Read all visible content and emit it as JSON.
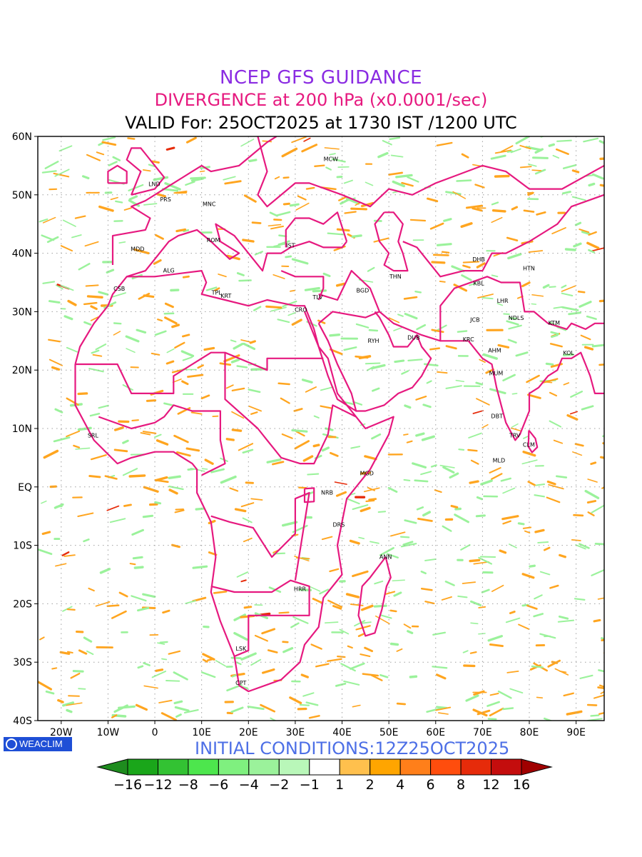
{
  "titles": {
    "line1": "NCEP GFS GUIDANCE",
    "line2": "DIVERGENCE at 200 hPa (x0.0001/sec)",
    "line3": "VALID For: 25OCT2025 at 1730 IST /1200 UTC"
  },
  "footer": {
    "logo_text": "WEACLIM",
    "initial_conditions": "INITIAL CONDITIONS:12Z25OCT2025"
  },
  "axes": {
    "lon_ticks": [
      {
        "lon": -20,
        "label": "20W"
      },
      {
        "lon": -10,
        "label": "10W"
      },
      {
        "lon": 0,
        "label": "0"
      },
      {
        "lon": 10,
        "label": "10E"
      },
      {
        "lon": 20,
        "label": "20E"
      },
      {
        "lon": 30,
        "label": "30E"
      },
      {
        "lon": 40,
        "label": "40E"
      },
      {
        "lon": 50,
        "label": "50E"
      },
      {
        "lon": 60,
        "label": "60E"
      },
      {
        "lon": 70,
        "label": "70E"
      },
      {
        "lon": 80,
        "label": "80E"
      },
      {
        "lon": 90,
        "label": "90E"
      }
    ],
    "lat_ticks": [
      {
        "lat": 60,
        "label": "60N"
      },
      {
        "lat": 50,
        "label": "50N"
      },
      {
        "lat": 40,
        "label": "40N"
      },
      {
        "lat": 30,
        "label": "30N"
      },
      {
        "lat": 20,
        "label": "20N"
      },
      {
        "lat": 10,
        "label": "10N"
      },
      {
        "lat": 0,
        "label": "EQ"
      },
      {
        "lat": -10,
        "label": "10S"
      },
      {
        "lat": -20,
        "label": "20S"
      },
      {
        "lat": -30,
        "label": "30S"
      },
      {
        "lat": -40,
        "label": "40S"
      }
    ],
    "lon_range": [
      -25,
      96
    ],
    "lat_range": [
      -40,
      60
    ]
  },
  "colorbar": {
    "labels": [
      "-16",
      "-12",
      "-8",
      "-6",
      "-4",
      "-2",
      "-1",
      "1",
      "2",
      "4",
      "6",
      "8",
      "12",
      "16"
    ],
    "colors": [
      "#1e8c1e",
      "#1aa61a",
      "#33c233",
      "#4de64d",
      "#7ff07f",
      "#9bf29b",
      "#b9f7b9",
      "#ffffff",
      "#ffc04d",
      "#ffa500",
      "#ff7f1a",
      "#ff4d0d",
      "#e62b0a",
      "#c40d0d",
      "#a00000"
    ]
  },
  "map_colors": {
    "boundary": "#e6197f",
    "divergence": "#ffa51f",
    "convergence": "#9bf29b",
    "strong_divergence": "#e62b0a"
  },
  "stations": [
    {
      "code": "MCW",
      "lon": 37.6,
      "lat": 55.8
    },
    {
      "code": "LND",
      "lon": -0.1,
      "lat": 51.5
    },
    {
      "code": "PRS",
      "lon": 2.3,
      "lat": 48.9
    },
    {
      "code": "MNC",
      "lon": 11.6,
      "lat": 48.1
    },
    {
      "code": "MDD",
      "lon": -3.7,
      "lat": 40.4
    },
    {
      "code": "ROM",
      "lon": 12.5,
      "lat": 41.9
    },
    {
      "code": "IST",
      "lon": 29.0,
      "lat": 41.0
    },
    {
      "code": "ALG",
      "lon": 3.0,
      "lat": 36.7
    },
    {
      "code": "THN",
      "lon": 51.4,
      "lat": 35.7
    },
    {
      "code": "DHB",
      "lon": 69.2,
      "lat": 38.6
    },
    {
      "code": "HTN",
      "lon": 79.9,
      "lat": 37.1
    },
    {
      "code": "CSB",
      "lon": -7.6,
      "lat": 33.6
    },
    {
      "code": "TPL",
      "lon": 13.2,
      "lat": 32.9
    },
    {
      "code": "KRT",
      "lon": 15.2,
      "lat": 32.4
    },
    {
      "code": "TLV",
      "lon": 34.8,
      "lat": 32.1
    },
    {
      "code": "BGD",
      "lon": 44.4,
      "lat": 33.3
    },
    {
      "code": "KBL",
      "lon": 69.2,
      "lat": 34.5
    },
    {
      "code": "LHR",
      "lon": 74.3,
      "lat": 31.5
    },
    {
      "code": "CRO",
      "lon": 31.2,
      "lat": 30.0
    },
    {
      "code": "NDLS",
      "lon": 77.2,
      "lat": 28.6
    },
    {
      "code": "JCB",
      "lon": 68.4,
      "lat": 28.3
    },
    {
      "code": "KTM",
      "lon": 85.3,
      "lat": 27.7
    },
    {
      "code": "RYH",
      "lon": 46.7,
      "lat": 24.7
    },
    {
      "code": "DUB",
      "lon": 55.3,
      "lat": 25.2
    },
    {
      "code": "KRC",
      "lon": 67.0,
      "lat": 24.9
    },
    {
      "code": "AHM",
      "lon": 72.6,
      "lat": 23.0
    },
    {
      "code": "KOL",
      "lon": 88.4,
      "lat": 22.6
    },
    {
      "code": "MUM",
      "lon": 72.9,
      "lat": 19.1
    },
    {
      "code": "DBT",
      "lon": 73.1,
      "lat": 11.8
    },
    {
      "code": "SRL",
      "lon": -13.2,
      "lat": 8.5
    },
    {
      "code": "TRV",
      "lon": 76.9,
      "lat": 8.5
    },
    {
      "code": "CLM",
      "lon": 79.9,
      "lat": 6.9
    },
    {
      "code": "MLD",
      "lon": 73.5,
      "lat": 4.2
    },
    {
      "code": "MGD",
      "lon": 45.3,
      "lat": 2.0
    },
    {
      "code": "NRB",
      "lon": 36.8,
      "lat": -1.3
    },
    {
      "code": "DRS",
      "lon": 39.3,
      "lat": -6.8
    },
    {
      "code": "ANN",
      "lon": 49.3,
      "lat": -12.3
    },
    {
      "code": "HRR",
      "lon": 31.0,
      "lat": -17.8
    },
    {
      "code": "LSK",
      "lon": 18.4,
      "lat": -28.0
    },
    {
      "code": "CPT",
      "lon": 18.4,
      "lat": -33.9
    }
  ]
}
